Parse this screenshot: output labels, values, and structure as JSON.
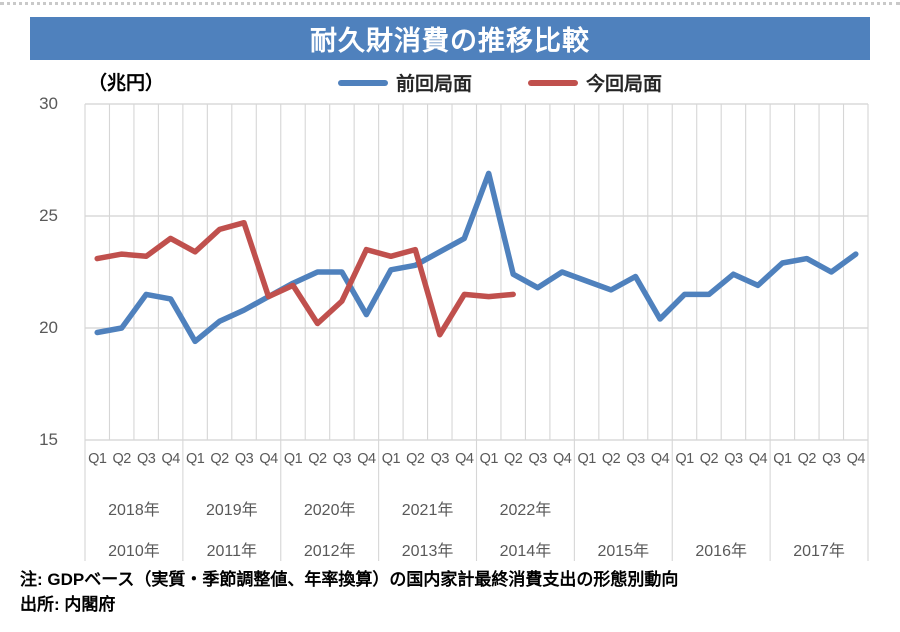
{
  "chart_data": {
    "type": "line",
    "title": "耐久財消費の推移比較",
    "unit_label": "（兆円）",
    "y_axis": {
      "min": 15,
      "max": 30,
      "ticks": [
        30,
        25,
        20,
        15
      ]
    },
    "x_axis": {
      "groups": 8,
      "quarter_labels": [
        "Q1",
        "Q2",
        "Q3",
        "Q4"
      ],
      "year_row_top": [
        "2018年",
        "2019年",
        "2020年",
        "2021年",
        "2022年"
      ],
      "year_row_bottom": [
        "2010年",
        "2011年",
        "2012年",
        "2013年",
        "2014年",
        "2015年",
        "2016年",
        "2017年"
      ]
    },
    "series": [
      {
        "name": "前回局面",
        "color": "#4f81bd",
        "period": "2010Q1-2017Q4",
        "values": [
          19.8,
          20.0,
          21.5,
          21.3,
          19.4,
          20.3,
          20.8,
          21.4,
          22.0,
          22.5,
          22.5,
          20.6,
          22.6,
          22.8,
          23.4,
          24.0,
          26.9,
          22.4,
          21.8,
          22.5,
          22.1,
          21.7,
          22.3,
          20.4,
          21.5,
          21.5,
          22.4,
          21.9,
          22.9,
          23.1,
          22.5,
          23.3
        ]
      },
      {
        "name": "今回局面",
        "color": "#c0504d",
        "period": "2018Q1-2022Q2",
        "values": [
          23.1,
          23.3,
          23.2,
          24.0,
          23.4,
          24.4,
          24.7,
          21.4,
          21.9,
          20.2,
          21.2,
          23.5,
          23.2,
          23.5,
          19.7,
          21.5,
          21.4,
          21.5
        ]
      }
    ],
    "notes": [
      "注: GDPベース（実質・季節調整値、年率換算）の国内家計最終消費支出の形態別動向",
      "出所: 内閣府"
    ],
    "grid": true,
    "legend_position": "top-center"
  }
}
